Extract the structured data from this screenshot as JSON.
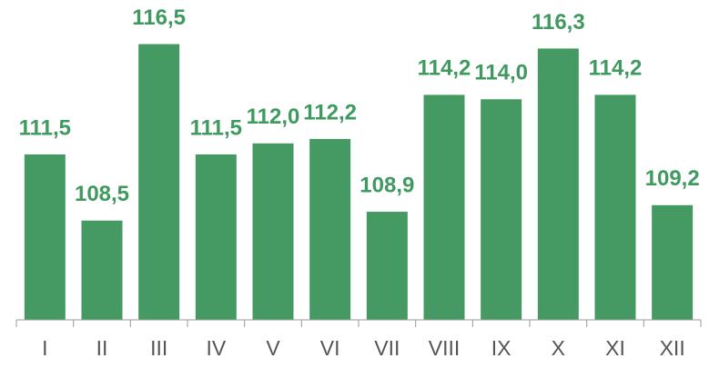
{
  "chart_data": {
    "type": "bar",
    "categories": [
      "I",
      "II",
      "III",
      "IV",
      "V",
      "VI",
      "VII",
      "VIII",
      "IX",
      "X",
      "XI",
      "XII"
    ],
    "values": [
      111.5,
      108.5,
      116.5,
      111.5,
      112.0,
      112.2,
      108.9,
      114.2,
      114.0,
      116.3,
      114.2,
      109.2
    ],
    "value_labels": [
      "111,5",
      "108,5",
      "116,5",
      "111,5",
      "112,0",
      "112,2",
      "108,9",
      "114,2",
      "114,0",
      "116,3",
      "114,2",
      "109,2"
    ],
    "color": "#459a63",
    "ylim": [
      104,
      118.5
    ]
  }
}
